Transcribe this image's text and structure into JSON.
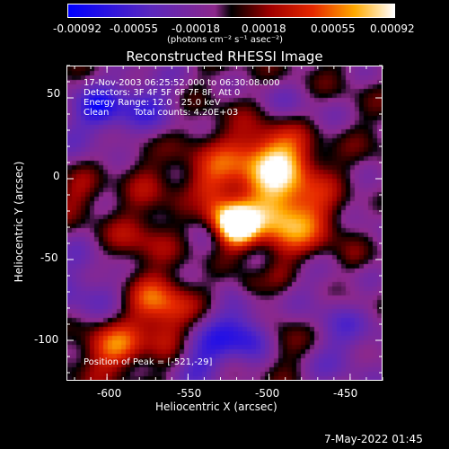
{
  "colorbar": {
    "ticks": [
      "-0.00092",
      "-0.00055",
      "-0.00018",
      "0.00018",
      "0.00055",
      "0.00092"
    ],
    "unit_label": "(photons cm⁻² s⁻¹ asec⁻²)"
  },
  "chart_data": {
    "type": "heatmap",
    "title": "Reconstructed RHESSI Image",
    "xlabel": "Heliocentric X (arcsec)",
    "ylabel": "Heliocentric Y (arcsec)",
    "xlim": [
      -625,
      -430
    ],
    "ylim": [
      -125,
      70
    ],
    "xticks": [
      "-600",
      "-550",
      "-500",
      "-450"
    ],
    "yticks": [
      "50",
      "0",
      "-50",
      "-100"
    ],
    "colorbar_range": [
      -0.00092,
      0.00092
    ],
    "peak": {
      "x": -521,
      "y": -29
    },
    "annotations": {
      "time": "17-Nov-2003 06:25:52.000 to 06:30:08.000",
      "detectors": "Detectors: 3F 4F 5F 6F 7F 8F, Att 0",
      "energy": "Energy Range: 12.0 - 25.0 keV",
      "method": "Clean",
      "counts": "Total counts: 4.20E+03",
      "peak_label": "Position of Peak = [-521,-29]"
    }
  },
  "footer_timestamp": "7-May-2022 01:45"
}
